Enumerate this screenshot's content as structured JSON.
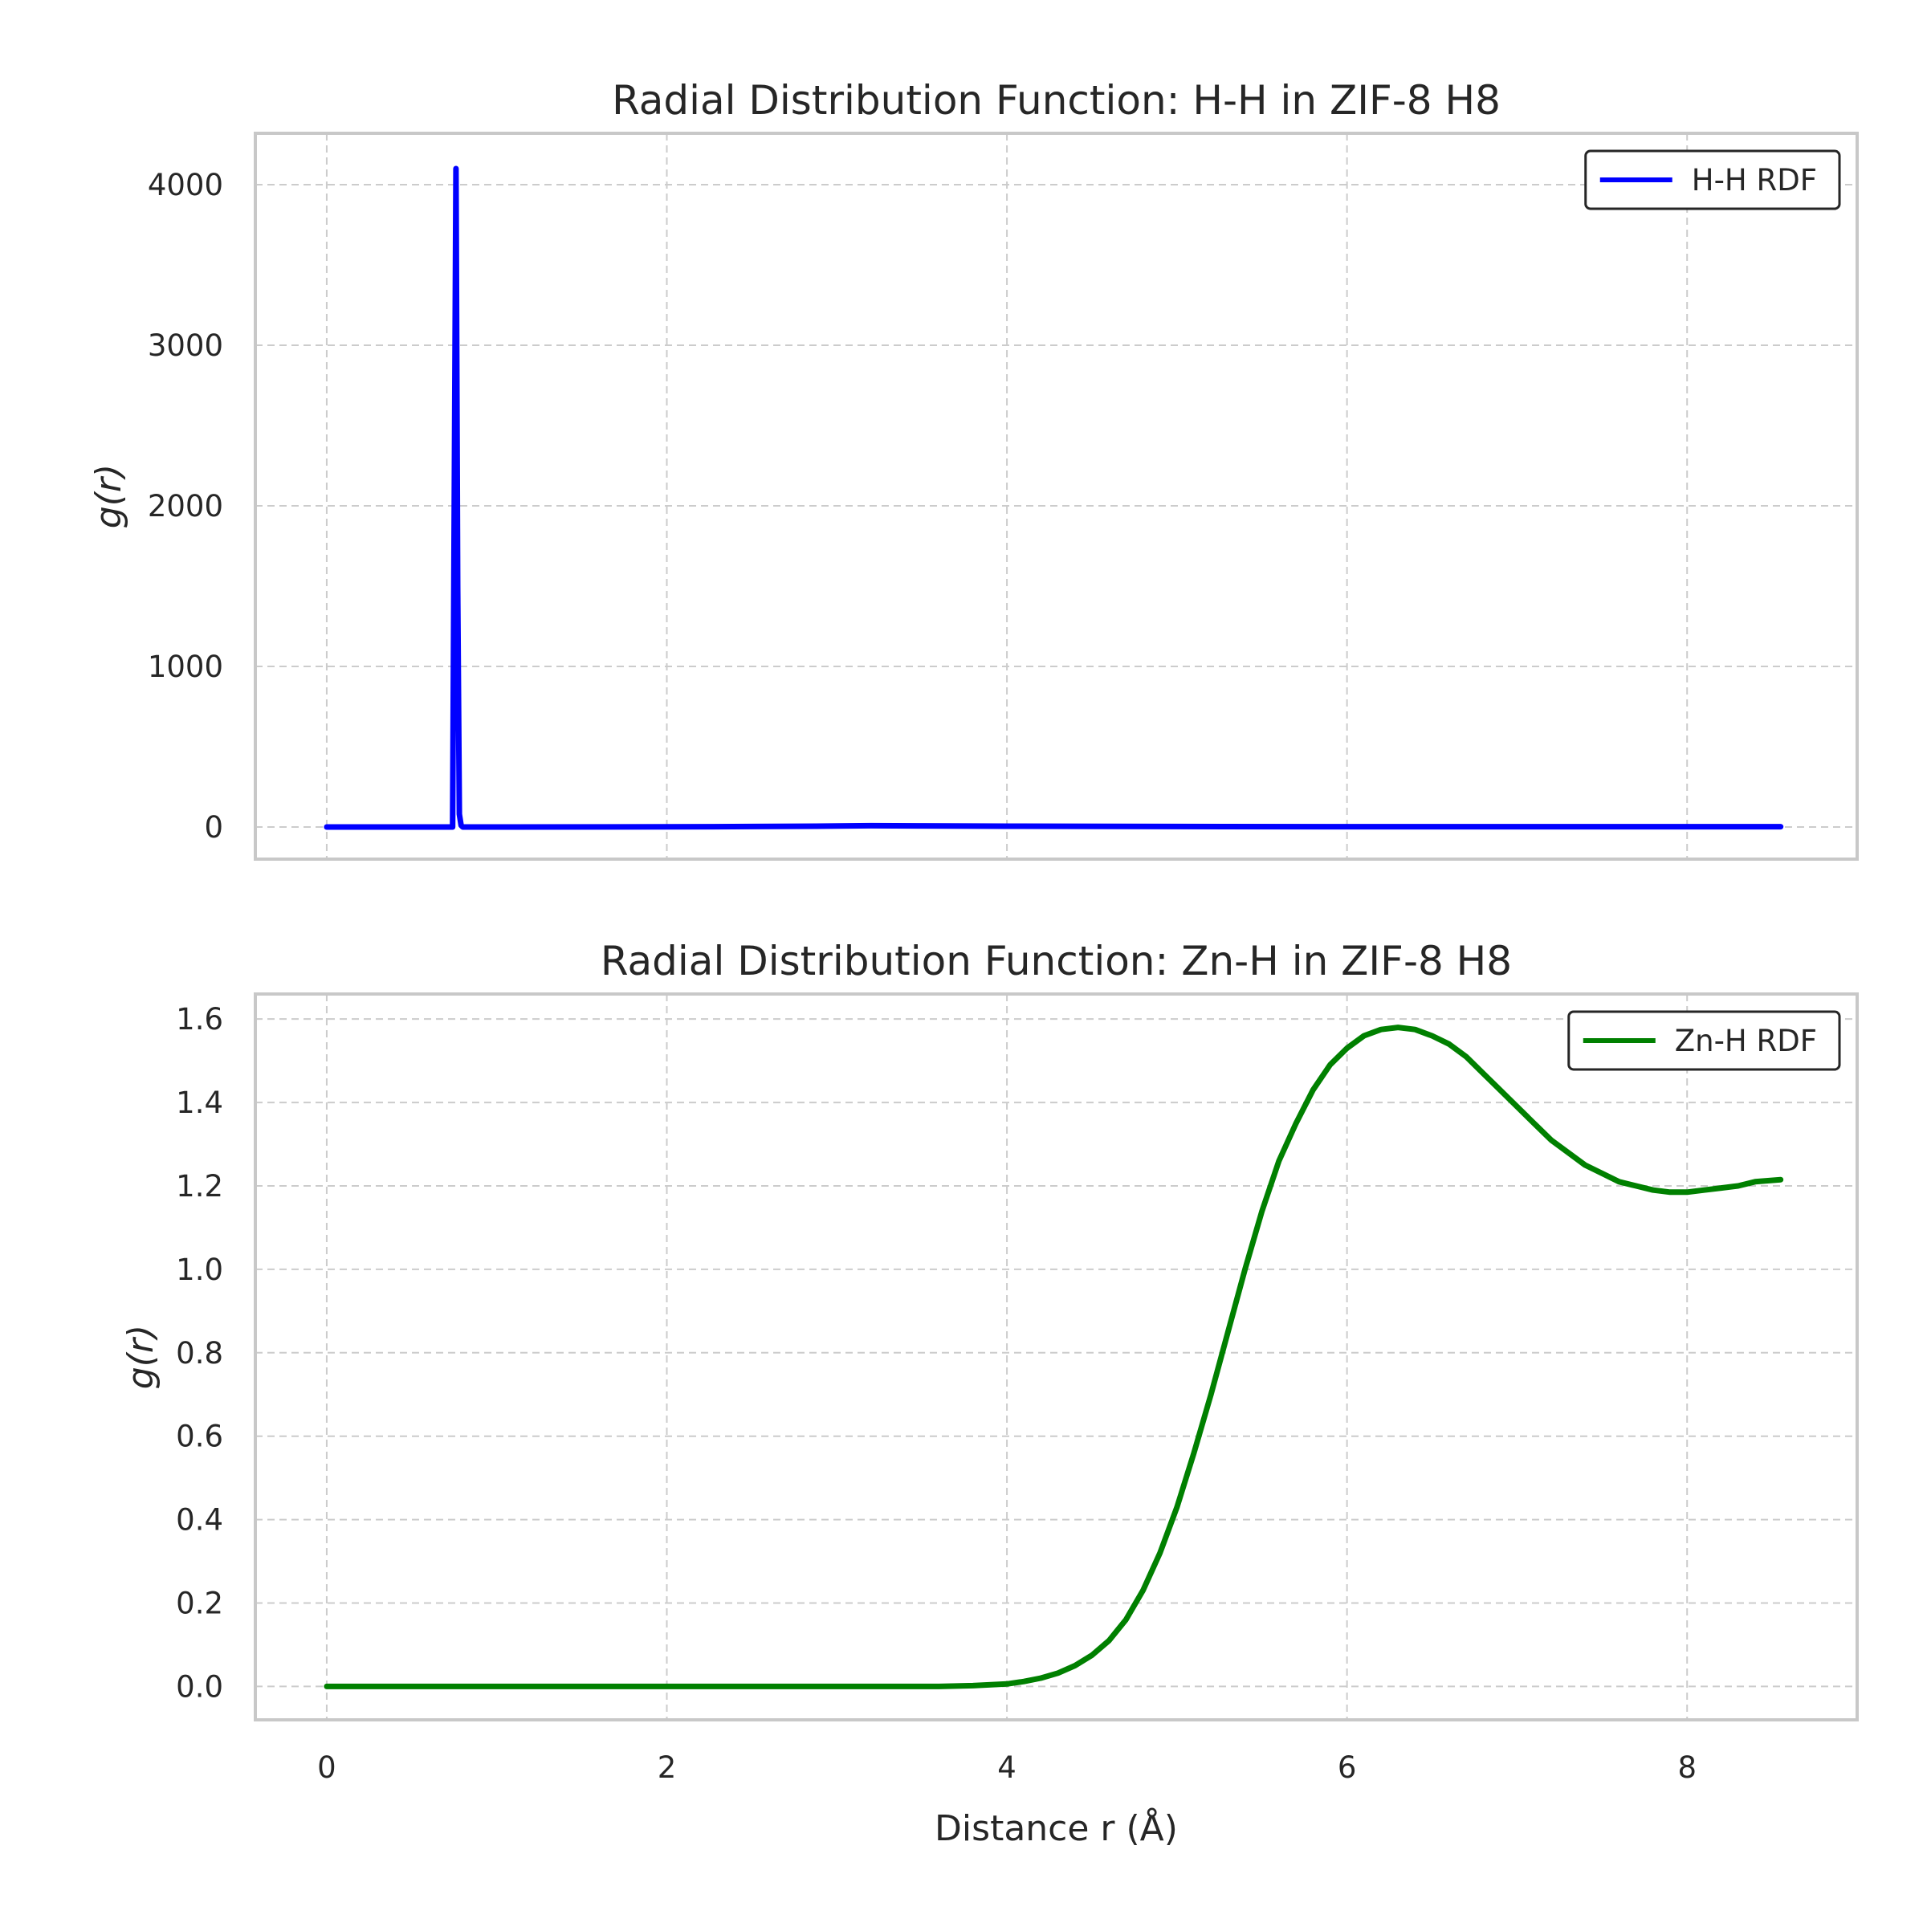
{
  "chart_data": [
    {
      "type": "line",
      "title": "Radial Distribution Function: H-H in ZIF-8 H8",
      "ylabel": "g(r)",
      "xlabel": "",
      "xlim": [
        -0.42,
        9.0
      ],
      "ylim": [
        -200,
        4320
      ],
      "xticks": [
        0,
        2,
        4,
        6,
        8
      ],
      "xtick_labels": [],
      "yticks": [
        0,
        1000,
        2000,
        3000,
        4000
      ],
      "ytick_labels": [
        "0",
        "1000",
        "2000",
        "3000",
        "4000"
      ],
      "grid": true,
      "legend": "top-right",
      "series": [
        {
          "name": "H-H RDF",
          "color": "#0000ff",
          "x": [
            0.0,
            0.74,
            0.76,
            0.77,
            0.78,
            0.79,
            0.8,
            0.82,
            0.84,
            1.0,
            2.0,
            2.5,
            3.0,
            3.2,
            3.5,
            4.0,
            5.0,
            6.0,
            7.0,
            8.0,
            8.55
          ],
          "y": [
            0,
            0,
            4100,
            1500,
            80,
            10,
            0,
            0,
            0,
            0,
            1,
            3,
            6,
            8,
            7,
            5,
            3,
            2,
            2,
            2,
            2
          ]
        }
      ]
    },
    {
      "type": "line",
      "title": "Radial Distribution Function: Zn-H in ZIF-8 H8",
      "ylabel": "g(r)",
      "xlabel": "Distance r (Å)",
      "xlim": [
        -0.42,
        9.0
      ],
      "ylim": [
        -0.08,
        1.66
      ],
      "xticks": [
        0,
        2,
        4,
        6,
        8
      ],
      "xtick_labels": [
        "0",
        "2",
        "4",
        "6",
        "8"
      ],
      "yticks": [
        0.0,
        0.2,
        0.4,
        0.6,
        0.8,
        1.0,
        1.2,
        1.4,
        1.6
      ],
      "ytick_labels": [
        "0.0",
        "0.2",
        "0.4",
        "0.6",
        "0.8",
        "1.0",
        "1.2",
        "1.4",
        "1.6"
      ],
      "grid": true,
      "legend": "top-right",
      "series": [
        {
          "name": "Zn-H RDF",
          "color": "#008000",
          "x": [
            0.0,
            1.0,
            2.0,
            3.0,
            3.6,
            3.8,
            4.0,
            4.1,
            4.2,
            4.3,
            4.4,
            4.5,
            4.6,
            4.7,
            4.8,
            4.9,
            5.0,
            5.1,
            5.2,
            5.3,
            5.4,
            5.5,
            5.6,
            5.7,
            5.8,
            5.9,
            6.0,
            6.1,
            6.2,
            6.3,
            6.4,
            6.5,
            6.6,
            6.7,
            6.8,
            6.9,
            7.0,
            7.1,
            7.2,
            7.3,
            7.4,
            7.5,
            7.6,
            7.7,
            7.8,
            7.9,
            8.0,
            8.1,
            8.2,
            8.3,
            8.4,
            8.55
          ],
          "y": [
            0.0,
            0.0,
            0.0,
            0.0,
            0.0,
            0.002,
            0.006,
            0.012,
            0.02,
            0.032,
            0.05,
            0.075,
            0.11,
            0.16,
            0.23,
            0.32,
            0.43,
            0.56,
            0.7,
            0.85,
            1.0,
            1.14,
            1.26,
            1.35,
            1.43,
            1.49,
            1.53,
            1.56,
            1.575,
            1.58,
            1.575,
            1.56,
            1.54,
            1.51,
            1.47,
            1.43,
            1.39,
            1.35,
            1.31,
            1.28,
            1.25,
            1.23,
            1.21,
            1.2,
            1.19,
            1.185,
            1.185,
            1.19,
            1.195,
            1.2,
            1.21,
            1.215
          ]
        }
      ]
    }
  ]
}
